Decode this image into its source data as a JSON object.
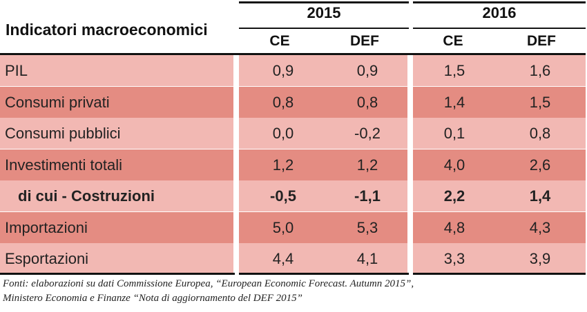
{
  "table": {
    "title": "Indicatori macroeconomici",
    "years": [
      "2015",
      "2016"
    ],
    "subheaders": [
      "CE",
      "DEF",
      "CE",
      "DEF"
    ],
    "rows": [
      {
        "label": "PIL",
        "values": [
          "0,9",
          "0,9",
          "1,5",
          "1,6"
        ],
        "style": "light",
        "bold": false
      },
      {
        "label": "Consumi privati",
        "values": [
          "0,8",
          "0,8",
          "1,4",
          "1,5"
        ],
        "style": "dark",
        "bold": false
      },
      {
        "label": "Consumi pubblici",
        "values": [
          "0,0",
          "-0,2",
          "0,1",
          "0,8"
        ],
        "style": "light",
        "bold": false
      },
      {
        "label": "Investimenti totali",
        "values": [
          "1,2",
          "1,2",
          "4,0",
          "2,6"
        ],
        "style": "dark",
        "bold": false
      },
      {
        "label": "di cui - Costruzioni",
        "values": [
          "-0,5",
          "-1,1",
          "2,2",
          "1,4"
        ],
        "style": "light",
        "bold": true
      },
      {
        "label": "Importazioni",
        "values": [
          "5,0",
          "5,3",
          "4,8",
          "4,3"
        ],
        "style": "dark",
        "bold": false
      },
      {
        "label": "Esportazioni",
        "values": [
          "4,4",
          "4,1",
          "3,3",
          "3,9"
        ],
        "style": "light",
        "bold": false
      }
    ]
  },
  "colors": {
    "row_light": "#f2b8b3",
    "row_dark": "#e48c82"
  },
  "source": {
    "line1": "Fonti: elaborazioni su dati Commissione Europea, “European Economic Forecast. Autumn 2015”,",
    "line2": "Ministero Economia e Finanze “Nota di aggiornamento del DEF 2015”"
  }
}
